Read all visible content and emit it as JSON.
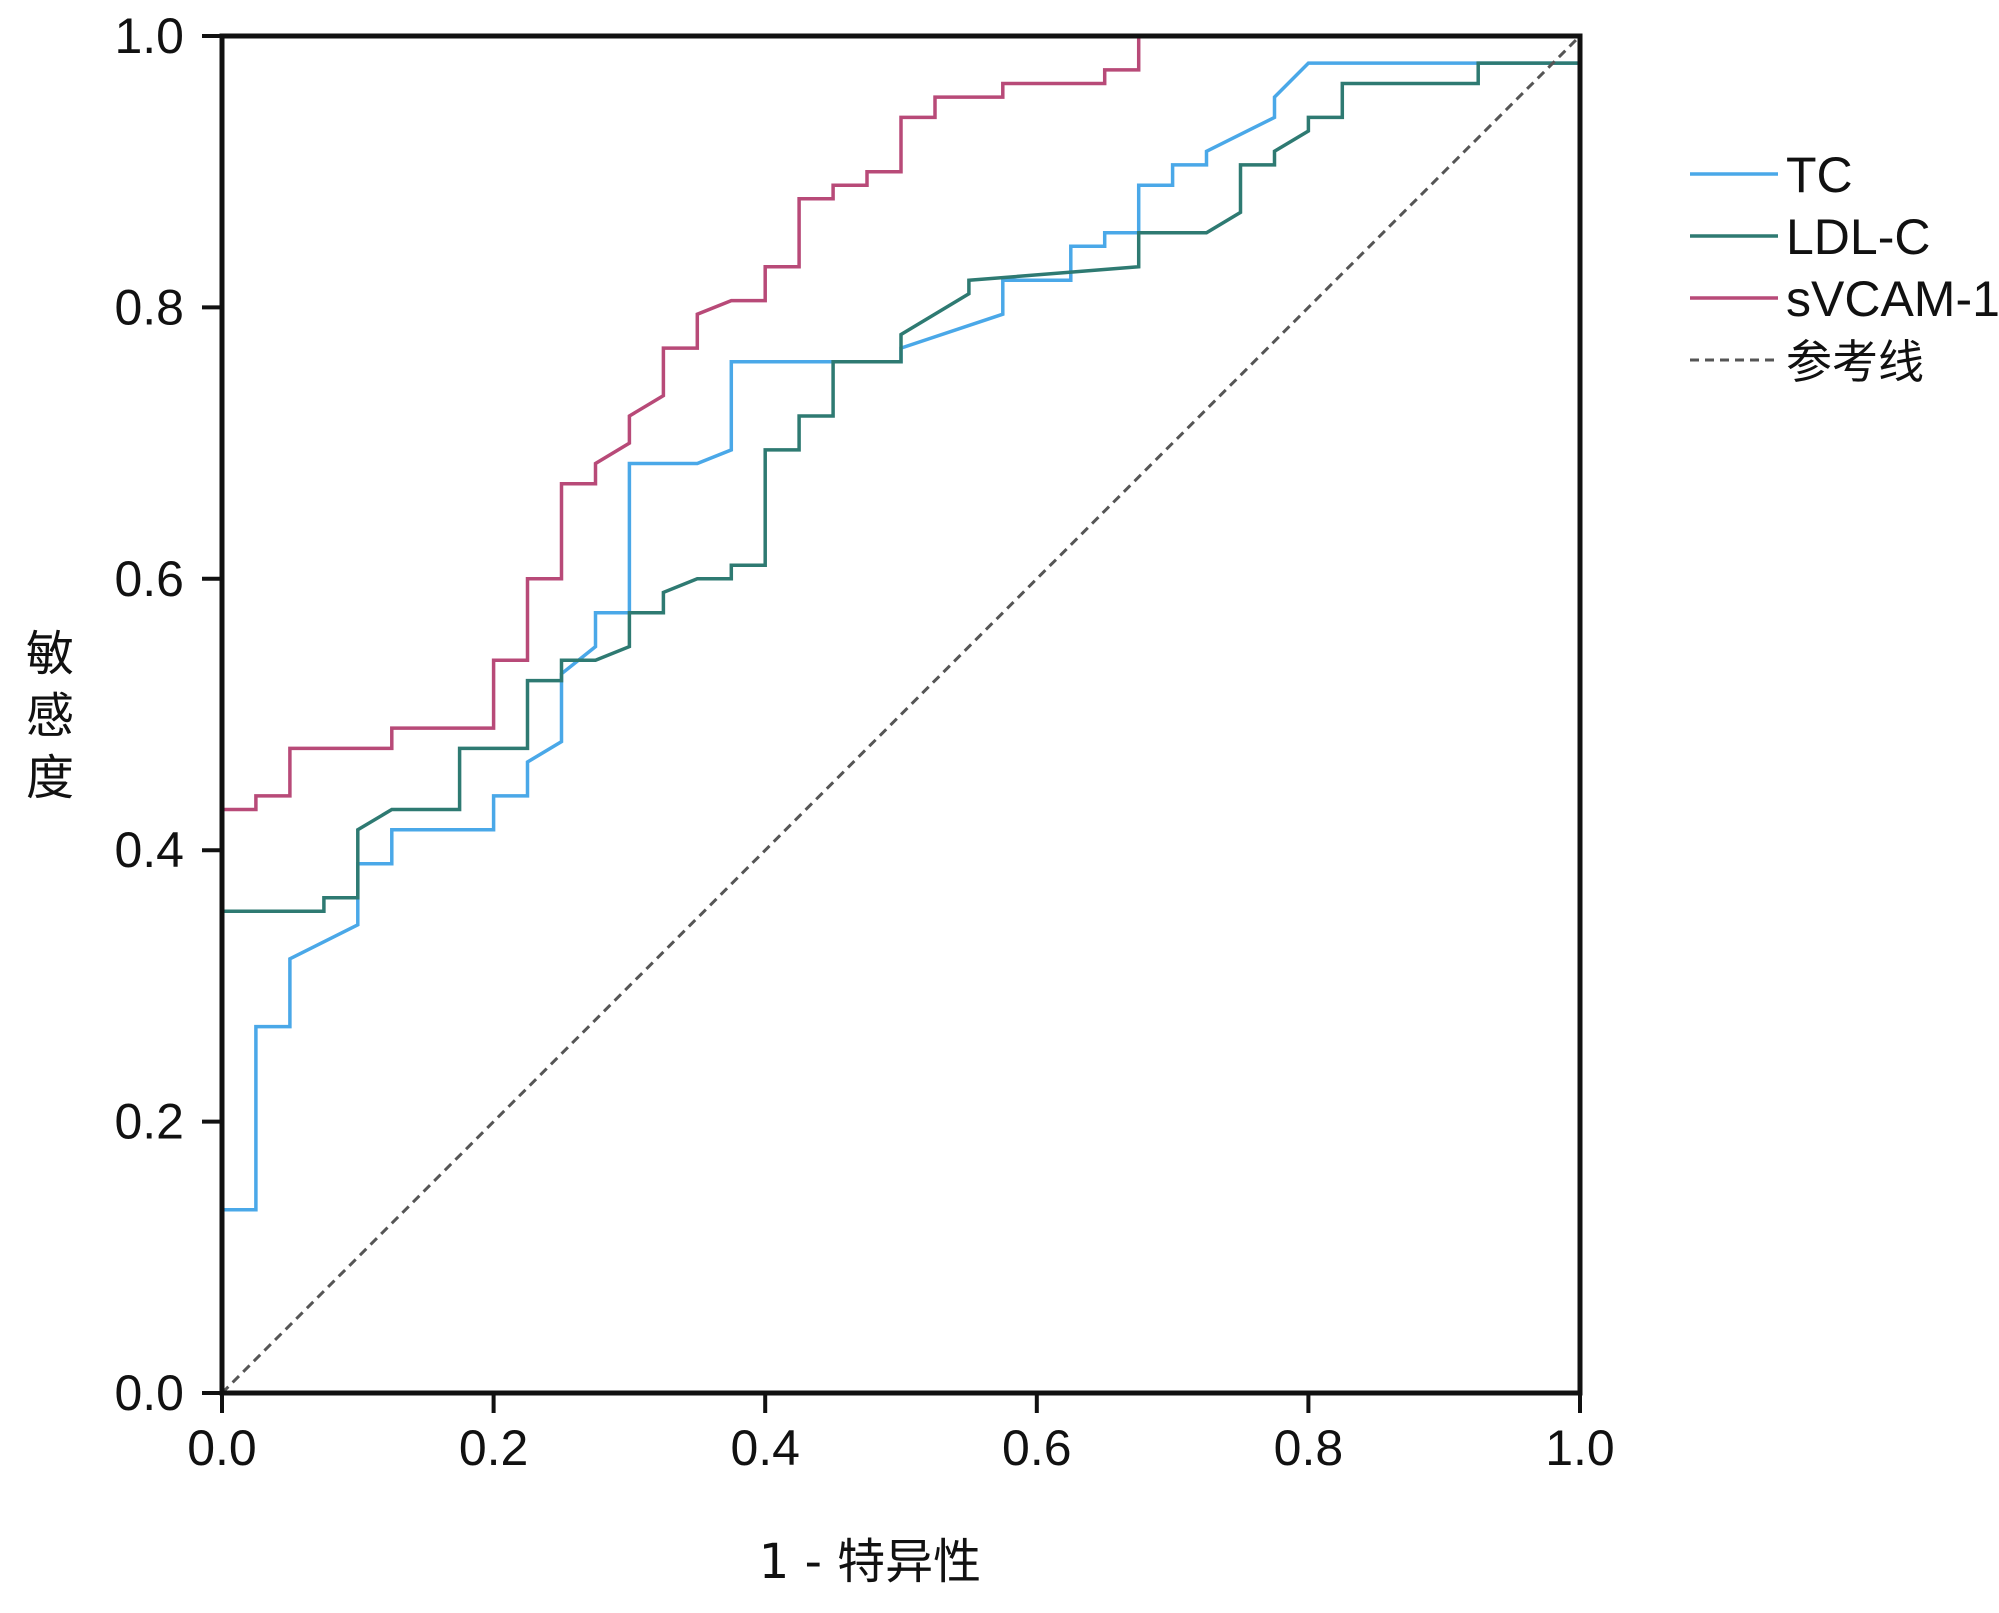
{
  "chart_data": {
    "type": "line",
    "title": "",
    "xlabel": "1 - 特异性",
    "ylabel": "敏感度",
    "xlim": [
      0,
      1
    ],
    "ylim": [
      0,
      1
    ],
    "x_ticks": [
      "0.0",
      "0.2",
      "0.4",
      "0.6",
      "0.8",
      "1.0"
    ],
    "y_ticks": [
      "0.0",
      "0.2",
      "0.4",
      "0.6",
      "0.8",
      "1.0"
    ],
    "grid": false,
    "legend_position": "right",
    "series": [
      {
        "name": "TC",
        "color": "#4aa8e8",
        "style": "solid",
        "points": [
          [
            0,
            0.135
          ],
          [
            0.025,
            0.135
          ],
          [
            0.025,
            0.27
          ],
          [
            0.05,
            0.27
          ],
          [
            0.05,
            0.32
          ],
          [
            0.1,
            0.345
          ],
          [
            0.1,
            0.39
          ],
          [
            0.125,
            0.39
          ],
          [
            0.125,
            0.415
          ],
          [
            0.2,
            0.415
          ],
          [
            0.2,
            0.44
          ],
          [
            0.225,
            0.44
          ],
          [
            0.225,
            0.465
          ],
          [
            0.25,
            0.48
          ],
          [
            0.25,
            0.53
          ],
          [
            0.275,
            0.55
          ],
          [
            0.275,
            0.575
          ],
          [
            0.3,
            0.575
          ],
          [
            0.3,
            0.685
          ],
          [
            0.35,
            0.685
          ],
          [
            0.375,
            0.695
          ],
          [
            0.375,
            0.76
          ],
          [
            0.5,
            0.76
          ],
          [
            0.5,
            0.77
          ],
          [
            0.575,
            0.795
          ],
          [
            0.575,
            0.82
          ],
          [
            0.625,
            0.82
          ],
          [
            0.625,
            0.845
          ],
          [
            0.65,
            0.845
          ],
          [
            0.65,
            0.855
          ],
          [
            0.675,
            0.855
          ],
          [
            0.675,
            0.89
          ],
          [
            0.7,
            0.89
          ],
          [
            0.7,
            0.905
          ],
          [
            0.725,
            0.905
          ],
          [
            0.725,
            0.915
          ],
          [
            0.775,
            0.94
          ],
          [
            0.775,
            0.955
          ],
          [
            0.8,
            0.98
          ],
          [
            1,
            0.98
          ]
        ]
      },
      {
        "name": "LDL-C",
        "color": "#2e7a72",
        "style": "solid",
        "points": [
          [
            0,
            0.355
          ],
          [
            0.075,
            0.355
          ],
          [
            0.075,
            0.365
          ],
          [
            0.1,
            0.365
          ],
          [
            0.1,
            0.415
          ],
          [
            0.125,
            0.43
          ],
          [
            0.175,
            0.43
          ],
          [
            0.175,
            0.475
          ],
          [
            0.225,
            0.475
          ],
          [
            0.225,
            0.525
          ],
          [
            0.25,
            0.525
          ],
          [
            0.25,
            0.54
          ],
          [
            0.275,
            0.54
          ],
          [
            0.3,
            0.55
          ],
          [
            0.3,
            0.575
          ],
          [
            0.325,
            0.575
          ],
          [
            0.325,
            0.59
          ],
          [
            0.35,
            0.6
          ],
          [
            0.375,
            0.6
          ],
          [
            0.375,
            0.61
          ],
          [
            0.4,
            0.61
          ],
          [
            0.4,
            0.695
          ],
          [
            0.425,
            0.695
          ],
          [
            0.425,
            0.72
          ],
          [
            0.45,
            0.72
          ],
          [
            0.45,
            0.76
          ],
          [
            0.5,
            0.76
          ],
          [
            0.5,
            0.78
          ],
          [
            0.55,
            0.81
          ],
          [
            0.55,
            0.82
          ],
          [
            0.675,
            0.83
          ],
          [
            0.675,
            0.855
          ],
          [
            0.725,
            0.855
          ],
          [
            0.75,
            0.87
          ],
          [
            0.75,
            0.905
          ],
          [
            0.775,
            0.905
          ],
          [
            0.775,
            0.915
          ],
          [
            0.8,
            0.93
          ],
          [
            0.8,
            0.94
          ],
          [
            0.825,
            0.94
          ],
          [
            0.825,
            0.965
          ],
          [
            0.925,
            0.965
          ],
          [
            0.925,
            0.98
          ],
          [
            1,
            0.98
          ]
        ]
      },
      {
        "name": "sVCAM-1",
        "color": "#b84a78",
        "style": "solid",
        "points": [
          [
            0,
            0.43
          ],
          [
            0.025,
            0.43
          ],
          [
            0.025,
            0.44
          ],
          [
            0.05,
            0.44
          ],
          [
            0.05,
            0.475
          ],
          [
            0.125,
            0.475
          ],
          [
            0.125,
            0.49
          ],
          [
            0.2,
            0.49
          ],
          [
            0.2,
            0.54
          ],
          [
            0.225,
            0.54
          ],
          [
            0.225,
            0.6
          ],
          [
            0.25,
            0.6
          ],
          [
            0.25,
            0.67
          ],
          [
            0.275,
            0.67
          ],
          [
            0.275,
            0.685
          ],
          [
            0.3,
            0.7
          ],
          [
            0.3,
            0.72
          ],
          [
            0.325,
            0.735
          ],
          [
            0.325,
            0.77
          ],
          [
            0.35,
            0.77
          ],
          [
            0.35,
            0.795
          ],
          [
            0.375,
            0.805
          ],
          [
            0.4,
            0.805
          ],
          [
            0.4,
            0.83
          ],
          [
            0.425,
            0.83
          ],
          [
            0.425,
            0.88
          ],
          [
            0.45,
            0.88
          ],
          [
            0.45,
            0.89
          ],
          [
            0.475,
            0.89
          ],
          [
            0.475,
            0.9
          ],
          [
            0.5,
            0.9
          ],
          [
            0.5,
            0.94
          ],
          [
            0.525,
            0.94
          ],
          [
            0.525,
            0.955
          ],
          [
            0.575,
            0.955
          ],
          [
            0.575,
            0.965
          ],
          [
            0.65,
            0.965
          ],
          [
            0.65,
            0.975
          ],
          [
            0.675,
            0.975
          ],
          [
            0.675,
            1
          ]
        ]
      },
      {
        "name": "参考线",
        "color": "#555555",
        "style": "dashed",
        "points": [
          [
            0,
            0
          ],
          [
            1,
            1
          ]
        ]
      }
    ]
  }
}
